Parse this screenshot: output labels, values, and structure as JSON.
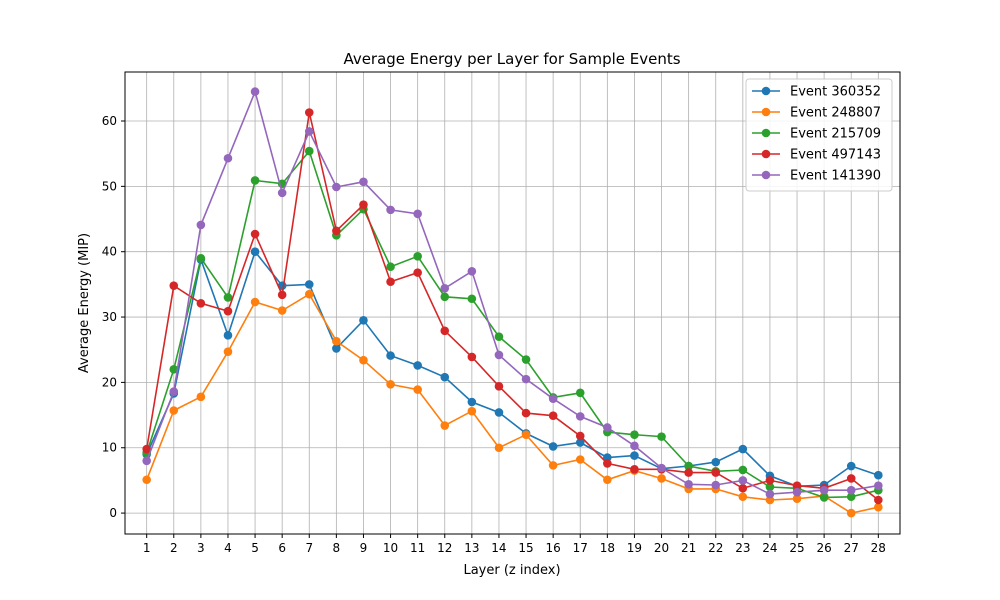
{
  "chart_data": {
    "type": "line",
    "title": "Average Energy per Layer for Sample Events",
    "xlabel": "Layer (z index)",
    "ylabel": "Average Energy (MIP)",
    "x": [
      1,
      2,
      3,
      4,
      5,
      6,
      7,
      8,
      9,
      10,
      11,
      12,
      13,
      14,
      15,
      16,
      17,
      18,
      19,
      20,
      21,
      22,
      23,
      24,
      25,
      26,
      27,
      28
    ],
    "xlim": [
      0.2,
      28.8
    ],
    "ylim": [
      -3.2,
      67.5
    ],
    "yticks": [
      0,
      10,
      20,
      30,
      40,
      50,
      60
    ],
    "grid": true,
    "legend_position": "top-right",
    "series": [
      {
        "name": "Event 360352",
        "color": "#1f77b4",
        "values": [
          9.0,
          18.3,
          38.8,
          27.2,
          40.0,
          34.8,
          35.0,
          25.2,
          29.5,
          24.1,
          22.6,
          20.8,
          17.0,
          15.4,
          12.2,
          10.2,
          10.8,
          8.5,
          8.8,
          6.8,
          7.2,
          7.8,
          9.8,
          5.7,
          4.1,
          4.3,
          7.2,
          5.8
        ]
      },
      {
        "name": "Event 248807",
        "color": "#ff7f0e",
        "values": [
          5.1,
          15.7,
          17.8,
          24.7,
          32.3,
          31.0,
          33.5,
          26.3,
          23.4,
          19.7,
          18.9,
          13.4,
          15.6,
          10.0,
          12.0,
          7.3,
          8.2,
          5.1,
          6.5,
          5.3,
          3.7,
          3.7,
          2.5,
          2.0,
          2.2,
          2.6,
          0.0,
          0.9
        ]
      },
      {
        "name": "Event 215709",
        "color": "#2ca02c",
        "values": [
          9.2,
          22.0,
          39.0,
          33.0,
          50.9,
          50.4,
          55.4,
          42.5,
          46.5,
          37.7,
          39.3,
          33.1,
          32.8,
          27.0,
          23.5,
          17.7,
          18.4,
          12.4,
          12.0,
          11.7,
          7.2,
          6.4,
          6.6,
          4.0,
          3.8,
          2.4,
          2.5,
          3.5
        ]
      },
      {
        "name": "Event 497143",
        "color": "#d62728",
        "values": [
          9.8,
          34.8,
          32.1,
          30.9,
          42.7,
          33.4,
          61.3,
          43.2,
          47.2,
          35.4,
          36.8,
          27.9,
          23.9,
          19.4,
          15.3,
          14.9,
          11.8,
          7.6,
          6.7,
          6.7,
          6.2,
          6.2,
          3.8,
          5.0,
          4.2,
          3.8,
          5.3,
          2.0
        ]
      },
      {
        "name": "Event 141390",
        "color": "#9467bd",
        "values": [
          8.0,
          18.6,
          44.1,
          54.3,
          64.5,
          49.0,
          58.4,
          49.9,
          50.7,
          46.4,
          45.8,
          34.4,
          37.0,
          24.2,
          20.5,
          17.5,
          14.8,
          13.1,
          10.3,
          6.9,
          4.4,
          4.3,
          5.0,
          2.9,
          3.2,
          3.5,
          3.5,
          4.2
        ]
      }
    ]
  }
}
